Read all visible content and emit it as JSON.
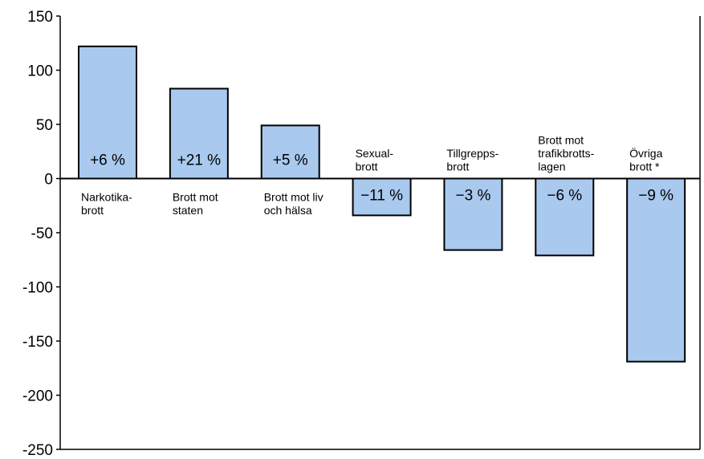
{
  "chart_data": {
    "type": "bar",
    "title": "",
    "xlabel": "",
    "ylabel": "",
    "ylim": [
      -250,
      150
    ],
    "yticks": [
      150,
      100,
      50,
      0,
      -50,
      -100,
      -150,
      -200,
      -250
    ],
    "ytick_labels": [
      "150",
      "100",
      "50",
      "0",
      "-50",
      "-100",
      "-150",
      "-200",
      "-250"
    ],
    "grid": false,
    "bar_color": "#a9c9ee",
    "categories": [
      [
        "Narkotika-",
        "brott"
      ],
      [
        "Brott mot",
        "staten"
      ],
      [
        "Brott mot liv",
        "och hälsa"
      ],
      [
        "Sexual-",
        "brott"
      ],
      [
        "Tillgrepps-",
        "brott"
      ],
      [
        "Brott mot",
        "trafikbrotts-",
        "lagen"
      ],
      [
        "Övriga",
        "brott *"
      ]
    ],
    "values": [
      122,
      83,
      49,
      -34,
      -66,
      -71,
      -169
    ],
    "data_labels": [
      "+6 %",
      "+21 %",
      "+5 %",
      "−11 %",
      "−3 %",
      "−6 %",
      "−9 %"
    ]
  }
}
